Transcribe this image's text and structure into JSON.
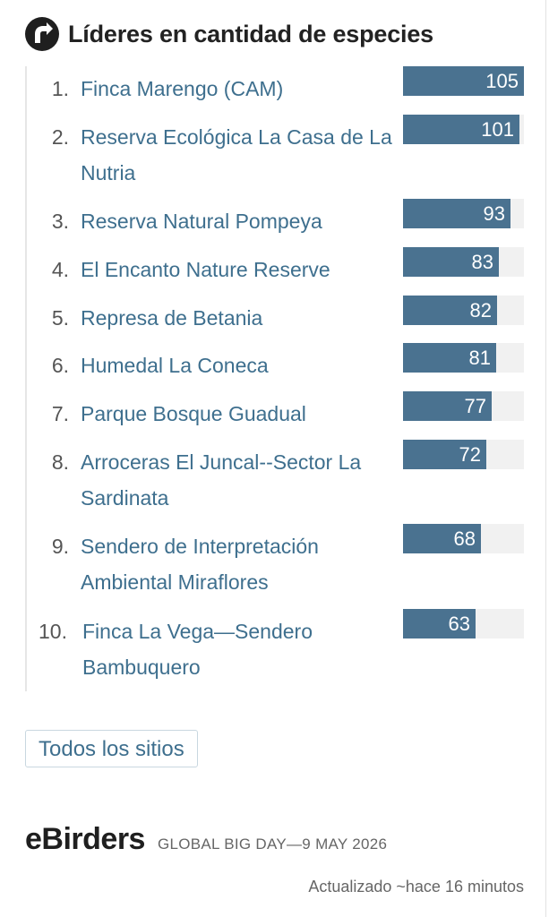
{
  "header": {
    "title": "Líderes en cantidad de especies",
    "icon": "ebird-logo-icon"
  },
  "leaders": {
    "max_value": 105,
    "items": [
      {
        "rank": "1.",
        "name": "Finca Marengo (CAM)",
        "value": 105
      },
      {
        "rank": "2.",
        "name": "Reserva Ecológica La Casa de La Nutria",
        "value": 101
      },
      {
        "rank": "3.",
        "name": "Reserva Natural Pompeya",
        "value": 93
      },
      {
        "rank": "4.",
        "name": "El Encanto Nature Reserve",
        "value": 83
      },
      {
        "rank": "5.",
        "name": "Represa de Betania",
        "value": 82
      },
      {
        "rank": "6.",
        "name": "Humedal La Coneca",
        "value": 81
      },
      {
        "rank": "7.",
        "name": "Parque Bosque Guadual",
        "value": 77
      },
      {
        "rank": "8.",
        "name": "Arroceras El Juncal--Sector La Sardinata",
        "value": 72
      },
      {
        "rank": "9.",
        "name": "Sendero de Interpretación Ambiental Miraflores",
        "value": 68
      },
      {
        "rank": "10.",
        "name": "Finca La Vega—Sendero Bambuquero",
        "value": 63
      }
    ]
  },
  "all_sites_button": {
    "label": "Todos los sitios"
  },
  "ebirders": {
    "brand": "eBirders",
    "event": "GLOBAL BIG DAY—9 MAY 2026"
  },
  "updated": "Actualizado ~hace 16 minutos",
  "colors": {
    "bar": "#4a7290",
    "track": "#f1f1f1",
    "link": "#3e6f8e"
  }
}
